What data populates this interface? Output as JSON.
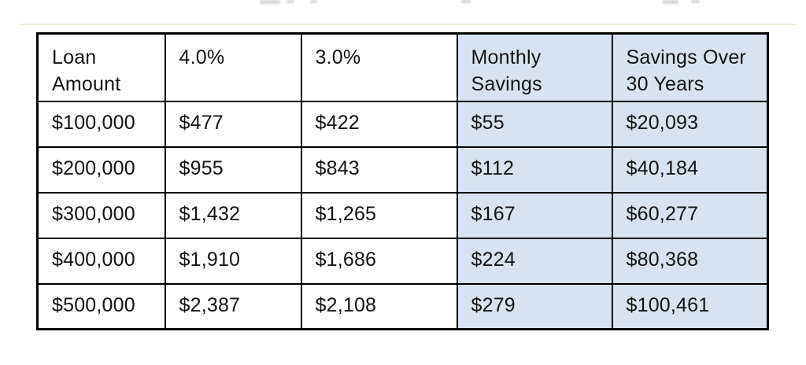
{
  "style": {
    "highlight_color": "#d7e3f0",
    "border_color": "#000000",
    "text_color": "#131313",
    "background": "#ffffff",
    "divider_line_color": "#f1ebdc"
  },
  "chart_data": {
    "type": "table",
    "title": "",
    "columns": [
      {
        "label": "Loan\nAmount",
        "highlighted": false
      },
      {
        "label": "4.0%",
        "highlighted": false
      },
      {
        "label": "3.0%",
        "highlighted": false
      },
      {
        "label": "Monthly\nSavings",
        "highlighted": true
      },
      {
        "label": "Savings Over\n30 Years",
        "highlighted": true
      }
    ],
    "rows": [
      [
        "$100,000",
        "$477",
        "$422",
        "$55",
        "$20,093"
      ],
      [
        "$200,000",
        "$955",
        "$843",
        "$112",
        "$40,184"
      ],
      [
        "$300,000",
        "$1,432",
        "$1,265",
        "$167",
        "$60,277"
      ],
      [
        "$400,000",
        "$1,910",
        "$1,686",
        "$224",
        "$80,368"
      ],
      [
        "$500,000",
        "$2,387",
        "$2,108",
        "$279",
        "$100,461"
      ]
    ]
  }
}
